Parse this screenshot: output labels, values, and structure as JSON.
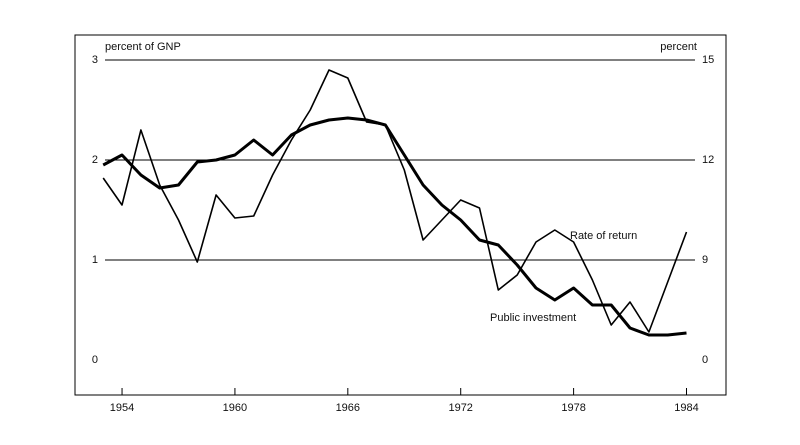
{
  "chart_data": {
    "type": "line",
    "y_label": "percent of GNP",
    "y2_label": "percent",
    "x": [
      1953,
      1954,
      1955,
      1956,
      1957,
      1958,
      1959,
      1960,
      1961,
      1962,
      1963,
      1964,
      1965,
      1966,
      1967,
      1968,
      1969,
      1970,
      1971,
      1972,
      1973,
      1974,
      1975,
      1976,
      1977,
      1978,
      1979,
      1980,
      1981,
      1982,
      1983,
      1984
    ],
    "series": [
      {
        "name": "Public investment",
        "color": "#000000",
        "width": 3,
        "values": [
          1.95,
          2.05,
          1.85,
          1.72,
          1.75,
          1.98,
          2.0,
          2.05,
          2.2,
          2.05,
          2.25,
          2.35,
          2.4,
          2.42,
          2.4,
          2.35,
          2.05,
          1.75,
          1.55,
          1.4,
          1.2,
          1.15,
          0.95,
          0.72,
          0.6,
          0.72,
          0.55,
          0.55,
          0.32,
          0.25,
          0.25,
          0.27
        ]
      },
      {
        "name": "Rate of return",
        "color": "#000000",
        "width": 1.6,
        "axis": "y2",
        "values": [
          11.46,
          10.65,
          12.9,
          11.25,
          10.2,
          8.82,
          10.95,
          10.26,
          10.32,
          11.55,
          12.6,
          13.5,
          14.7,
          14.46,
          13.14,
          13.05,
          11.7,
          9.6,
          10.2,
          10.8,
          10.56,
          6.3,
          7.65,
          9.54,
          9.9,
          9.54,
          7.2,
          3.15,
          5.22,
          2.52,
          7.02,
          9.84
        ]
      }
    ],
    "xlim": [
      1951.5,
      1986.1
    ],
    "xticks": [
      1954,
      1960,
      1966,
      1972,
      1978,
      1984
    ],
    "ylim": [
      -0.35,
      3.25
    ],
    "yticks": [
      0,
      1,
      2,
      3
    ],
    "y2ticks": [
      0,
      9,
      12,
      15
    ],
    "grid": true
  }
}
